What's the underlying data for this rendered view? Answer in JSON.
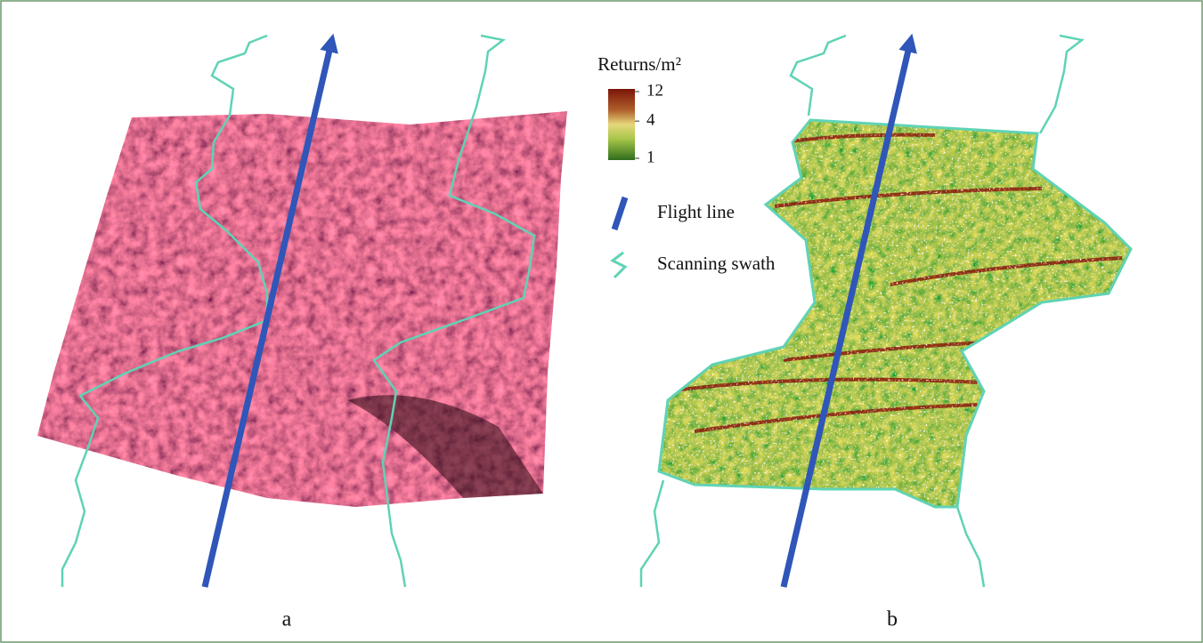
{
  "legend": {
    "colorbar": {
      "title": "Returns/m²",
      "scale": "log",
      "ticks": [
        12,
        4,
        1
      ]
    },
    "items": [
      {
        "label": "Flight line"
      },
      {
        "label": "Scanning swath"
      }
    ]
  },
  "panels": [
    {
      "label": "a"
    },
    {
      "label": "b"
    }
  ]
}
